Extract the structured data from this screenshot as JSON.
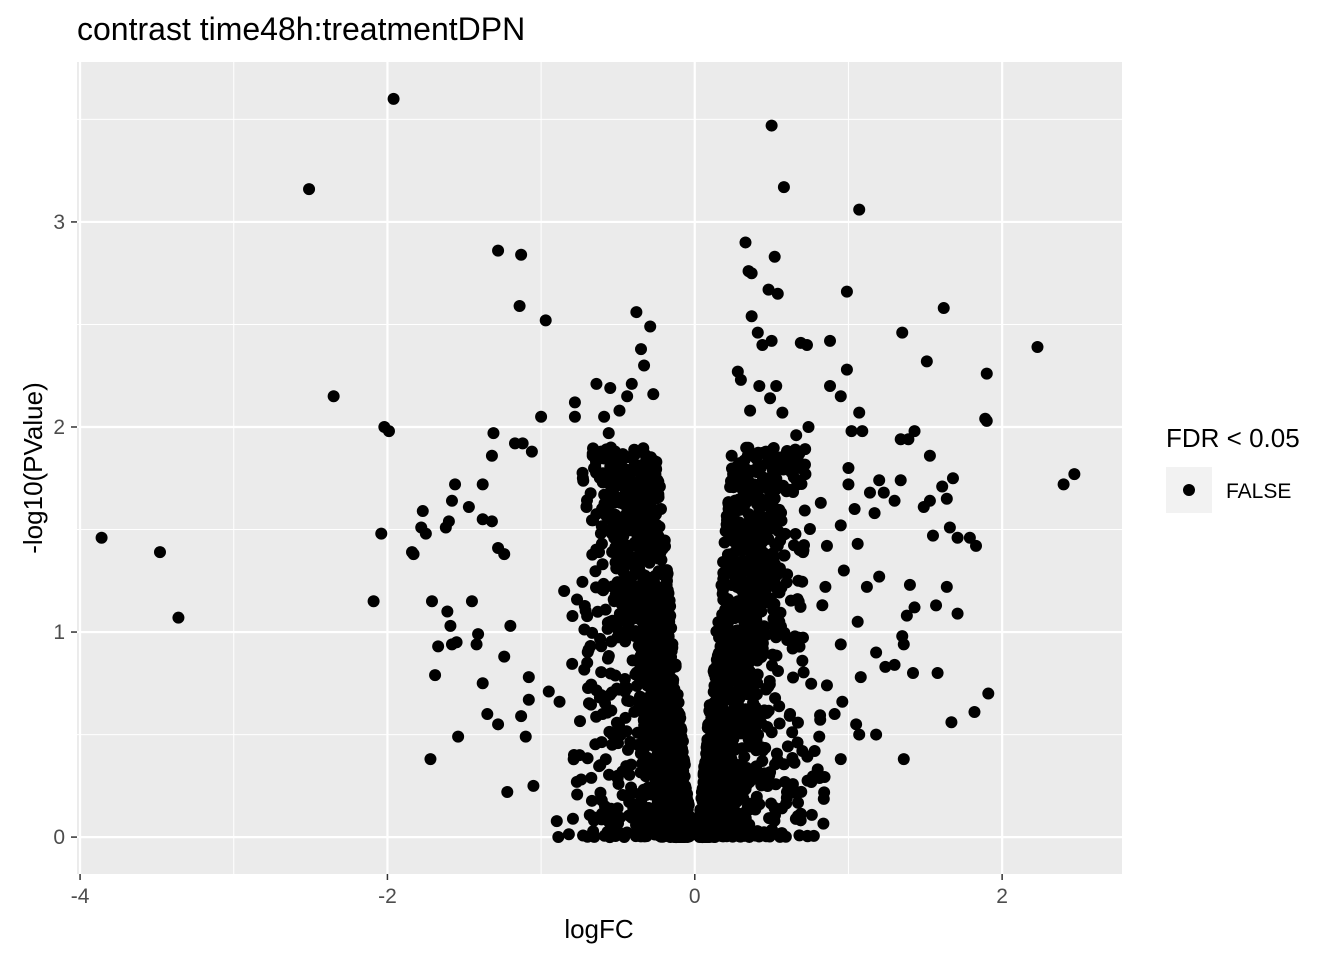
{
  "chart_data": {
    "type": "scatter",
    "title": "contrast time48h:treatmentDPN",
    "xlabel": "logFC",
    "ylabel": "-log10(PValue)",
    "xlim": [
      -4.02,
      2.78
    ],
    "ylim": [
      -0.18,
      3.78
    ],
    "x_ticks": [
      -4,
      -2,
      0,
      2
    ],
    "x_tick_labels": [
      "-4",
      "-2",
      "0",
      "2"
    ],
    "y_ticks": [
      0,
      1,
      2,
      3
    ],
    "y_tick_labels": [
      "0",
      "1",
      "2",
      "3"
    ],
    "grid": true,
    "panel_background": "#ebebeb",
    "grid_color": "#ffffff",
    "point_color": "#000000",
    "legend": {
      "title": "FDR < 0.05",
      "placement": "right",
      "entries": [
        {
          "label": "FALSE",
          "color": "#000000"
        }
      ]
    },
    "series": [
      {
        "name": "FALSE",
        "points": [
          [
            -1.96,
            3.6
          ],
          [
            -2.51,
            3.16
          ],
          [
            -1.28,
            2.86
          ],
          [
            -1.13,
            2.84
          ],
          [
            -1.14,
            2.59
          ],
          [
            -0.97,
            2.52
          ],
          [
            -0.38,
            2.56
          ],
          [
            -0.29,
            2.49
          ],
          [
            -0.35,
            2.38
          ],
          [
            -0.33,
            2.3
          ],
          [
            -0.27,
            2.16
          ],
          [
            -0.64,
            2.21
          ],
          [
            -0.55,
            2.19
          ],
          [
            -0.41,
            2.21
          ],
          [
            -0.44,
            2.15
          ],
          [
            -2.35,
            2.15
          ],
          [
            -2.02,
            2.0
          ],
          [
            -1.99,
            1.98
          ],
          [
            -1.0,
            2.05
          ],
          [
            -1.31,
            1.97
          ],
          [
            -1.17,
            1.92
          ],
          [
            -1.12,
            1.92
          ],
          [
            -1.06,
            1.88
          ],
          [
            -1.32,
            1.86
          ],
          [
            -0.78,
            2.12
          ],
          [
            -0.78,
            2.05
          ],
          [
            -0.59,
            2.05
          ],
          [
            -0.49,
            2.08
          ],
          [
            -0.56,
            1.97
          ],
          [
            -0.61,
            1.88
          ],
          [
            -2.04,
            1.48
          ],
          [
            -2.09,
            1.15
          ],
          [
            -3.86,
            1.46
          ],
          [
            -3.48,
            1.39
          ],
          [
            -3.36,
            1.07
          ],
          [
            -1.77,
            1.59
          ],
          [
            -1.78,
            1.51
          ],
          [
            -1.84,
            1.39
          ],
          [
            -1.83,
            1.38
          ],
          [
            -1.75,
            1.48
          ],
          [
            -1.62,
            1.51
          ],
          [
            -1.6,
            1.54
          ],
          [
            -1.56,
            1.72
          ],
          [
            -1.58,
            1.64
          ],
          [
            -1.47,
            1.61
          ],
          [
            -1.38,
            1.72
          ],
          [
            -1.38,
            1.55
          ],
          [
            -1.32,
            1.54
          ],
          [
            -1.28,
            1.41
          ],
          [
            -1.24,
            1.38
          ],
          [
            -1.71,
            1.15
          ],
          [
            -1.61,
            1.1
          ],
          [
            -1.59,
            1.03
          ],
          [
            -1.58,
            0.94
          ],
          [
            -1.67,
            0.93
          ],
          [
            -1.45,
            1.15
          ],
          [
            -1.41,
            0.99
          ],
          [
            -1.42,
            0.94
          ],
          [
            -1.38,
            0.75
          ],
          [
            -1.55,
            0.95
          ],
          [
            -1.69,
            0.79
          ],
          [
            -1.35,
            0.6
          ],
          [
            -1.28,
            0.55
          ],
          [
            -1.54,
            0.49
          ],
          [
            -1.72,
            0.38
          ],
          [
            -1.22,
            0.22
          ],
          [
            -1.05,
            0.25
          ],
          [
            -1.2,
            1.03
          ],
          [
            -1.24,
            0.88
          ],
          [
            -1.08,
            0.78
          ],
          [
            -1.08,
            0.67
          ],
          [
            -1.13,
            0.59
          ],
          [
            -1.1,
            0.49
          ],
          [
            -0.95,
            0.71
          ],
          [
            -0.88,
            0.66
          ],
          [
            2.23,
            2.39
          ],
          [
            2.47,
            1.77
          ],
          [
            2.4,
            1.72
          ],
          [
            1.62,
            2.58
          ],
          [
            1.35,
            2.46
          ],
          [
            1.51,
            2.32
          ],
          [
            1.9,
            2.26
          ],
          [
            1.89,
            2.04
          ],
          [
            1.9,
            2.03
          ],
          [
            1.43,
            1.98
          ],
          [
            1.34,
            1.94
          ],
          [
            1.39,
            1.94
          ],
          [
            1.53,
            1.86
          ],
          [
            1.68,
            1.75
          ],
          [
            1.61,
            1.71
          ],
          [
            1.64,
            1.65
          ],
          [
            1.53,
            1.64
          ],
          [
            1.49,
            1.61
          ],
          [
            1.34,
            1.74
          ],
          [
            1.3,
            1.64
          ],
          [
            1.71,
            1.46
          ],
          [
            1.79,
            1.46
          ],
          [
            1.83,
            1.42
          ],
          [
            1.66,
            1.51
          ],
          [
            1.55,
            1.47
          ],
          [
            1.57,
            1.13
          ],
          [
            1.64,
            1.22
          ],
          [
            1.71,
            1.09
          ],
          [
            1.4,
            1.23
          ],
          [
            1.43,
            1.12
          ],
          [
            1.38,
            1.08
          ],
          [
            1.35,
            0.98
          ],
          [
            1.36,
            0.94
          ],
          [
            1.3,
            0.84
          ],
          [
            1.42,
            0.8
          ],
          [
            1.58,
            0.8
          ],
          [
            1.91,
            0.7
          ],
          [
            1.82,
            0.61
          ],
          [
            1.67,
            0.56
          ],
          [
            1.36,
            0.38
          ],
          [
            1.18,
            0.5
          ],
          [
            1.05,
            0.55
          ],
          [
            1.07,
            0.5
          ],
          [
            0.5,
            3.47
          ],
          [
            0.58,
            3.17
          ],
          [
            1.07,
            3.06
          ],
          [
            0.33,
            2.9
          ],
          [
            0.52,
            2.83
          ],
          [
            0.35,
            2.76
          ],
          [
            0.37,
            2.75
          ],
          [
            0.48,
            2.67
          ],
          [
            0.54,
            2.65
          ],
          [
            0.99,
            2.66
          ],
          [
            0.37,
            2.54
          ],
          [
            0.41,
            2.46
          ],
          [
            0.44,
            2.4
          ],
          [
            0.5,
            2.42
          ],
          [
            0.69,
            2.41
          ],
          [
            0.73,
            2.4
          ],
          [
            0.88,
            2.42
          ],
          [
            0.99,
            2.28
          ],
          [
            0.88,
            2.2
          ],
          [
            0.95,
            2.15
          ],
          [
            0.28,
            2.27
          ],
          [
            0.3,
            2.23
          ],
          [
            0.42,
            2.2
          ],
          [
            0.53,
            2.2
          ],
          [
            0.49,
            2.14
          ],
          [
            0.36,
            2.08
          ],
          [
            0.57,
            2.07
          ],
          [
            0.74,
            2.0
          ],
          [
            0.66,
            1.96
          ],
          [
            0.68,
            1.87
          ],
          [
            1.07,
            2.07
          ],
          [
            1.02,
            1.98
          ],
          [
            1.09,
            1.98
          ],
          [
            1.0,
            1.8
          ],
          [
            1.0,
            1.72
          ],
          [
            0.72,
            1.77
          ],
          [
            0.82,
            1.63
          ],
          [
            1.14,
            1.68
          ],
          [
            1.2,
            1.74
          ],
          [
            1.23,
            1.68
          ],
          [
            1.17,
            1.58
          ],
          [
            1.04,
            1.6
          ],
          [
            0.95,
            1.52
          ],
          [
            1.06,
            1.43
          ],
          [
            0.86,
            1.42
          ],
          [
            1.2,
            1.27
          ],
          [
            1.12,
            1.22
          ],
          [
            0.97,
            1.3
          ],
          [
            1.06,
            1.05
          ],
          [
            1.18,
            0.9
          ],
          [
            1.08,
            0.78
          ],
          [
            1.24,
            0.83
          ],
          [
            0.95,
            0.94
          ],
          [
            0.86,
            0.74
          ],
          [
            0.91,
            0.6
          ],
          [
            0.96,
            0.66
          ],
          [
            0.81,
            0.49
          ],
          [
            0.8,
            0.33
          ],
          [
            0.95,
            0.38
          ],
          [
            0.7,
            0.42
          ],
          [
            0.52,
            0.14
          ],
          [
            0.6,
            0.22
          ],
          [
            -0.09,
            0.04
          ],
          [
            -0.05,
            0.02
          ],
          [
            0.04,
            0.03
          ],
          [
            0.08,
            0.03
          ],
          [
            -0.12,
            0.09
          ],
          [
            0.11,
            0.1
          ],
          [
            -0.17,
            0.19
          ],
          [
            0.16,
            0.2
          ],
          [
            -0.22,
            0.33
          ],
          [
            0.21,
            0.35
          ],
          [
            -0.27,
            0.52
          ],
          [
            0.26,
            0.54
          ],
          [
            -0.31,
            0.74
          ],
          [
            0.3,
            0.78
          ],
          [
            -0.35,
            0.98
          ],
          [
            0.34,
            1.02
          ],
          [
            -0.38,
            1.2
          ],
          [
            0.37,
            1.25
          ],
          [
            -0.41,
            1.42
          ],
          [
            0.4,
            1.45
          ],
          [
            -0.44,
            1.62
          ],
          [
            0.43,
            1.65
          ],
          [
            -0.22,
            1.6
          ],
          [
            0.22,
            1.6
          ],
          [
            -0.25,
            1.83
          ],
          [
            0.24,
            1.86
          ],
          [
            -0.6,
            0.6
          ],
          [
            0.62,
            0.6
          ],
          [
            -0.75,
            0.4
          ],
          [
            0.78,
            0.42
          ],
          [
            -0.55,
            1.05
          ],
          [
            0.55,
            1.05
          ],
          [
            -0.7,
            0.85
          ],
          [
            0.7,
            0.86
          ],
          [
            -0.85,
            1.2
          ],
          [
            0.85,
            1.22
          ],
          [
            -0.5,
            0.3
          ],
          [
            0.48,
            0.3
          ],
          [
            -0.4,
            0.14
          ],
          [
            0.42,
            0.16
          ]
        ]
      }
    ]
  }
}
